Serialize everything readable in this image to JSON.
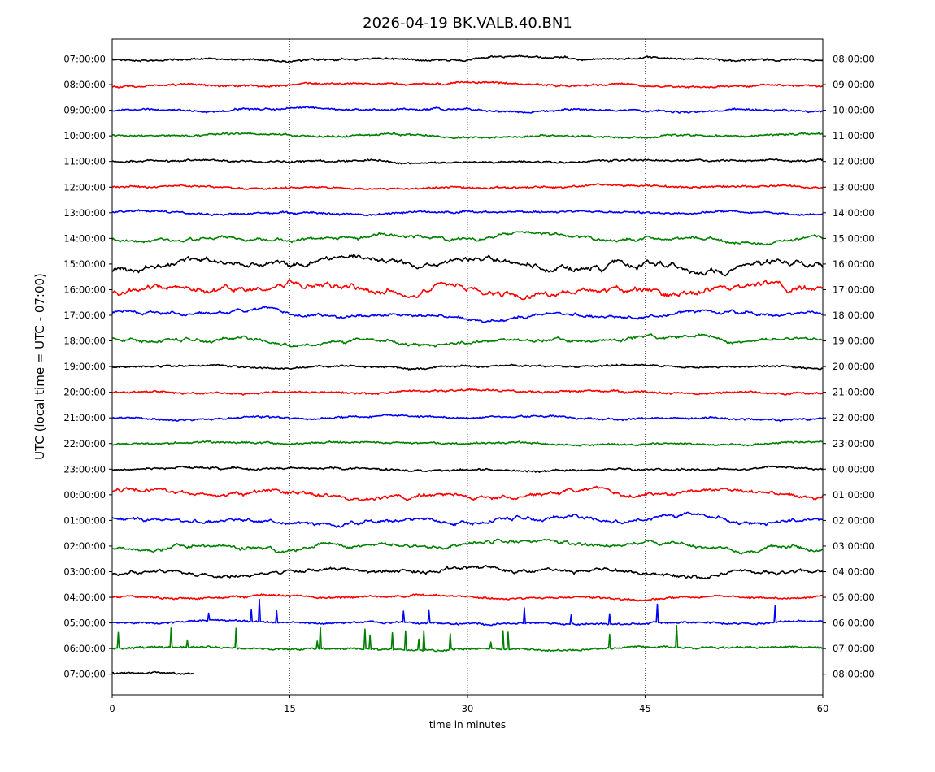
{
  "chart_data": {
    "type": "line",
    "title": "2026-04-19 BK.VALB.40.BN1",
    "xlabel": "time in minutes",
    "ylabel": "UTC (local time = UTC - 07:00)",
    "xlim": [
      0,
      60
    ],
    "xticks": [
      0,
      15,
      30,
      45,
      60
    ],
    "grid": "vertical dotted lines at 15, 30, 45",
    "trace_colors": [
      "#000000",
      "#ff0000",
      "#0000ff",
      "#008000"
    ],
    "rows_left": [
      "07:00:00",
      "08:00:00",
      "09:00:00",
      "10:00:00",
      "11:00:00",
      "12:00:00",
      "13:00:00",
      "14:00:00",
      "15:00:00",
      "16:00:00",
      "17:00:00",
      "18:00:00",
      "19:00:00",
      "20:00:00",
      "21:00:00",
      "22:00:00",
      "23:00:00",
      "00:00:00",
      "01:00:00",
      "02:00:00",
      "03:00:00",
      "04:00:00",
      "05:00:00",
      "06:00:00",
      "07:00:00"
    ],
    "rows_right": [
      "08:00:00",
      "09:00:00",
      "10:00:00",
      "11:00:00",
      "12:00:00",
      "13:00:00",
      "14:00:00",
      "15:00:00",
      "16:00:00",
      "17:00:00",
      "18:00:00",
      "19:00:00",
      "20:00:00",
      "21:00:00",
      "22:00:00",
      "23:00:00",
      "00:00:00",
      "01:00:00",
      "02:00:00",
      "03:00:00",
      "04:00:00",
      "05:00:00",
      "06:00:00",
      "07:00:00",
      "08:00:00"
    ],
    "last_row_end_minute": 6.9
  }
}
